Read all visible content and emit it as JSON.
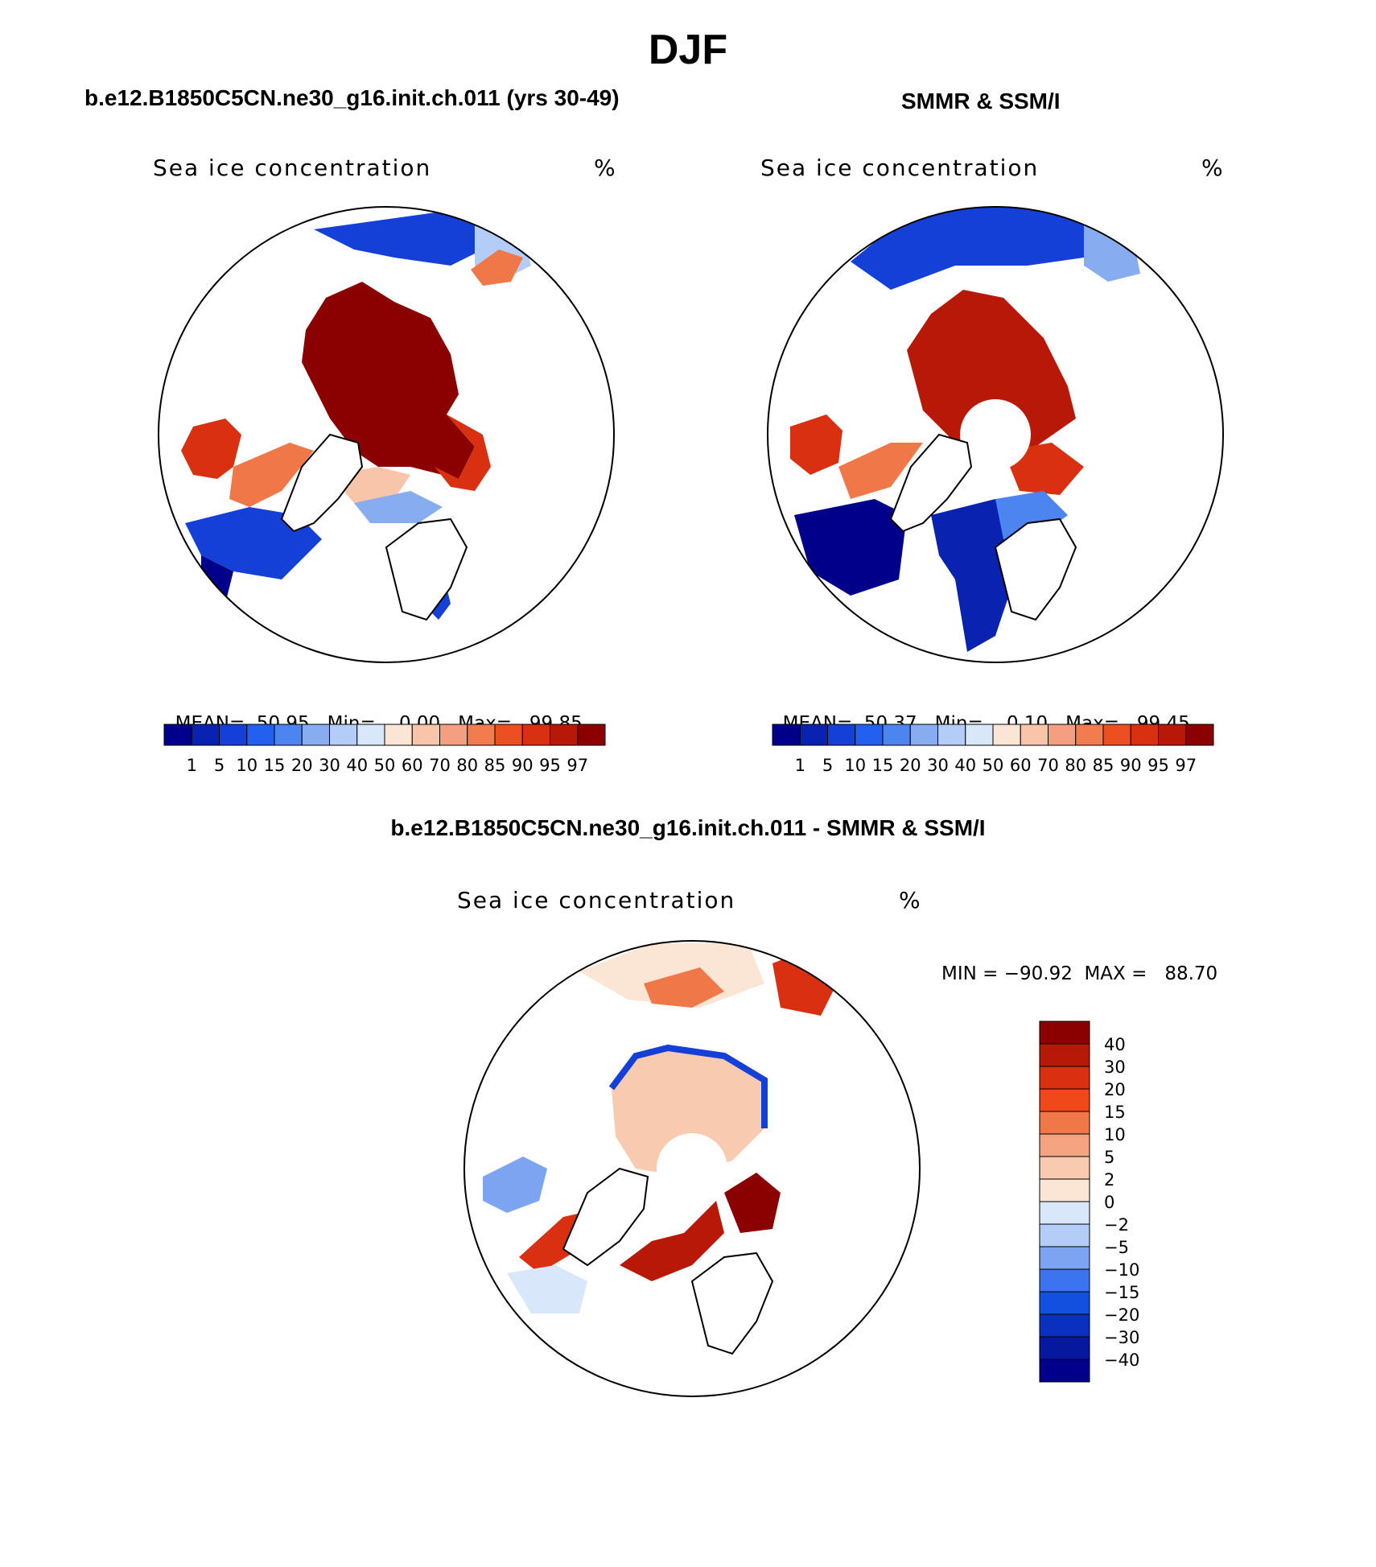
{
  "main_title": "DJF",
  "left_panel": {
    "case_title": "b.e12.B1850C5CN.ne30_g16.init.ch.011 (yrs 30-49)",
    "field_label": "Sea ice concentration",
    "units": "%",
    "stats": {
      "mean_label": "MEAN=",
      "mean": "50.95",
      "min_label": "Min=",
      "min": "0.00",
      "max_label": "Max=",
      "max": "99.85"
    }
  },
  "right_panel": {
    "case_title": "SMMR & SSM/I",
    "field_label": "Sea ice concentration",
    "units": "%",
    "stats": {
      "mean_label": "MEAN=",
      "mean": "50.37",
      "min_label": "Min=",
      "min": "0.10",
      "max_label": "Max=",
      "max": "99.45"
    }
  },
  "diff_panel": {
    "case_title": "b.e12.B1850C5CN.ne30_g16.init.ch.011 - SMMR & SSM/I",
    "field_label": "Sea ice concentration",
    "units": "%",
    "minmax_text": "MIN = −90.92  MAX =   88.70"
  },
  "conc_colorbar": {
    "labels": [
      "1",
      "5",
      "10",
      "15",
      "20",
      "30",
      "40",
      "50",
      "60",
      "70",
      "80",
      "85",
      "90",
      "95",
      "97"
    ],
    "colors": [
      "#00008b",
      "#0a22b0",
      "#1440d8",
      "#2460f0",
      "#4c84f0",
      "#88acf0",
      "#b4ccf8",
      "#d8e8fa",
      "#fbe6d6",
      "#f8c4aa",
      "#f4a080",
      "#f07c50",
      "#ec5020",
      "#d83010",
      "#b81808",
      "#8b0000"
    ]
  },
  "diff_colorbar": {
    "labels": [
      "40",
      "30",
      "20",
      "15",
      "10",
      "5",
      "2",
      "0",
      "−2",
      "−5",
      "−10",
      "−15",
      "−20",
      "−30",
      "−40"
    ],
    "colors": [
      "#8b0000",
      "#b81808",
      "#d83010",
      "#f04818",
      "#f07848",
      "#f4a480",
      "#f8cab0",
      "#fbe6d6",
      "#d8e8fa",
      "#b4ccf8",
      "#7ca4f0",
      "#3c74f0",
      "#1450e0",
      "#0a30c0",
      "#0618a0",
      "#00008b"
    ]
  },
  "colors": {
    "dark_red": "#8b0000",
    "red": "#d83010",
    "orange": "#f07848",
    "light_salmon": "#f8c4aa",
    "peach": "#fbe6d6",
    "light_blue": "#d8e8fa",
    "mid_blue": "#4c84f0",
    "blue": "#1440d8",
    "navy": "#00008b"
  }
}
